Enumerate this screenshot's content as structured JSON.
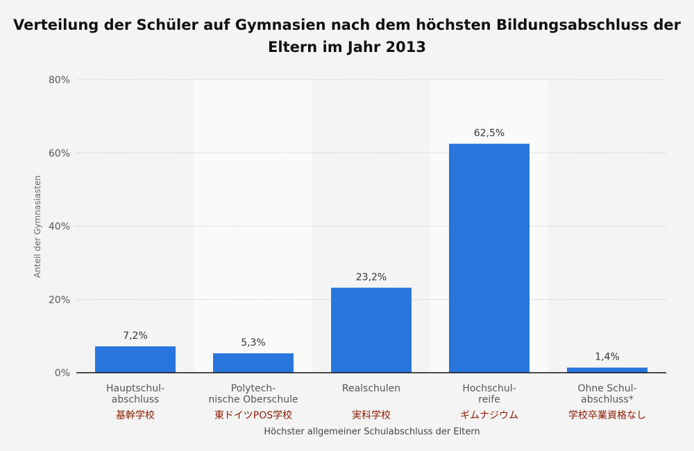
{
  "chart_data": {
    "type": "bar",
    "title": "Verteilung der Schüler auf Gymnasien nach dem höchsten Bildungsabschluss der Eltern im Jahr 2013",
    "xlabel": "Höchster allgemeiner Schulabschluss der Eltern",
    "ylabel": "Anteil der Gymnasiasten",
    "categories": [
      [
        "Hauptschul-",
        "abschluss"
      ],
      [
        "Polytech-",
        "nische Oberschule"
      ],
      [
        "Realschulen"
      ],
      [
        "Hochschul-",
        "reife"
      ],
      [
        "Ohne Schul-",
        "abschluss*"
      ]
    ],
    "category_annotations": [
      "基幹学校",
      "東ドイツPOS学校",
      "実科学校",
      "ギムナジウム",
      "学校卒業資格なし"
    ],
    "values": [
      7.2,
      5.3,
      23.2,
      62.5,
      1.4
    ],
    "value_labels": [
      "7,2%",
      "5,3%",
      "23,2%",
      "62,5%",
      "1,4%"
    ],
    "ylim": [
      0,
      80
    ],
    "yticks": [
      0,
      20,
      40,
      60,
      80
    ],
    "ytick_labels": [
      "0%",
      "20%",
      "40%",
      "60%",
      "80%"
    ],
    "grid": true,
    "alternating_band_background": true,
    "colors": {
      "bar": "#2876dd",
      "band": "#fafafa",
      "grid": "#c7c7c7",
      "annotation_text": "#8b1a00",
      "label_text": "#555555",
      "axis_line": "#111111"
    }
  }
}
